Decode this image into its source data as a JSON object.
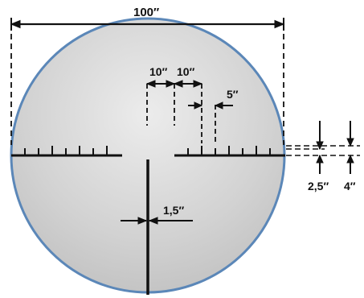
{
  "colors": {
    "background": "#ffffff",
    "circle_fill": "#c9c9c9",
    "circle_fill_highlight": "#e6e6e6",
    "circle_border": "#5b87b8",
    "ink": "#111111"
  },
  "labels": {
    "total_width": "100″",
    "gap_left": "10″",
    "gap_right": "10″",
    "tick_spacing": "5″",
    "line_thickness": "1,5″",
    "minor_tick_height": "2,5″",
    "major_tick_height": "4″"
  }
}
